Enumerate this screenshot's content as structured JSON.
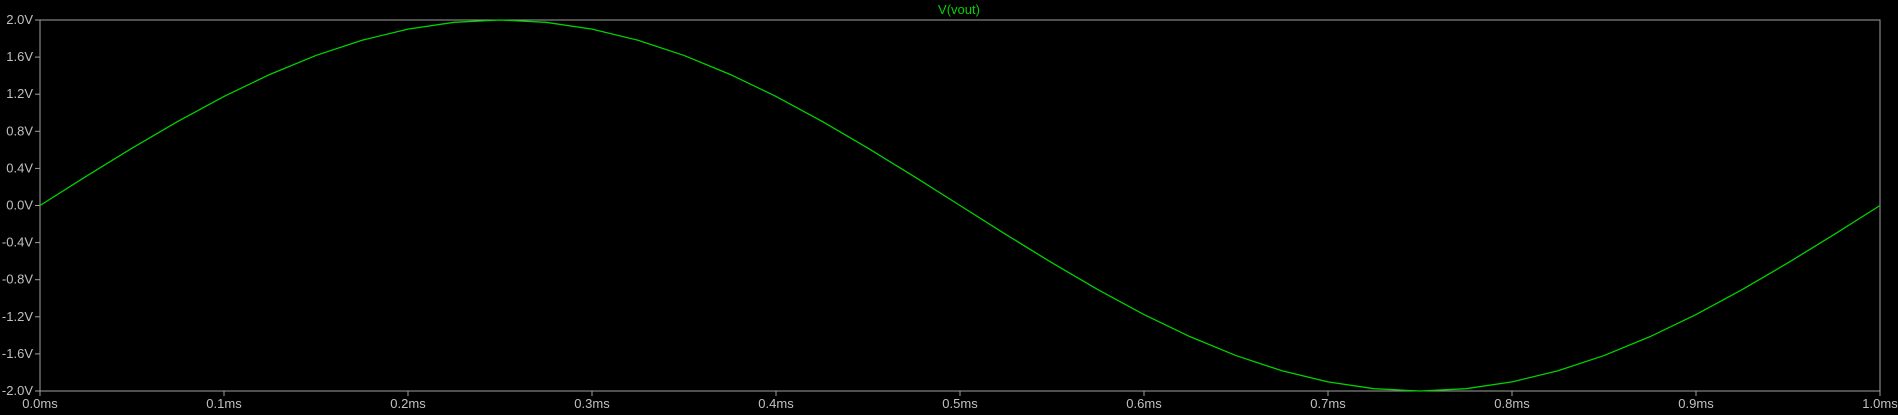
{
  "chart_data": {
    "type": "line",
    "title": "V(vout)",
    "xlabel": "",
    "ylabel": "",
    "xlim": [
      0.0,
      1.0
    ],
    "ylim": [
      -2.0,
      2.0
    ],
    "x_ticks": [
      0.0,
      0.1,
      0.2,
      0.3,
      0.4,
      0.5,
      0.6,
      0.7,
      0.8,
      0.9,
      1.0
    ],
    "x_tick_labels": [
      "0.0ms",
      "0.1ms",
      "0.2ms",
      "0.3ms",
      "0.4ms",
      "0.5ms",
      "0.6ms",
      "0.7ms",
      "0.8ms",
      "0.9ms",
      "1.0ms"
    ],
    "y_ticks": [
      2.0,
      1.6,
      1.2,
      0.8,
      0.4,
      0.0,
      -0.4,
      -0.8,
      -1.2,
      -1.6,
      -2.0
    ],
    "y_tick_labels": [
      "2.0V",
      "1.6V",
      "1.2V",
      "0.8V",
      "0.4V",
      "0.0V",
      "-0.4V",
      "-0.8V",
      "-1.2V",
      "-1.6V",
      "-2.0V"
    ],
    "grid": false,
    "series": [
      {
        "name": "V(vout)",
        "color": "#00d200",
        "x": [
          0.0,
          0.025,
          0.05,
          0.075,
          0.1,
          0.125,
          0.15,
          0.175,
          0.2,
          0.225,
          0.25,
          0.275,
          0.3,
          0.325,
          0.35,
          0.375,
          0.4,
          0.425,
          0.45,
          0.475,
          0.5,
          0.525,
          0.55,
          0.575,
          0.6,
          0.625,
          0.65,
          0.675,
          0.7,
          0.725,
          0.75,
          0.775,
          0.8,
          0.825,
          0.85,
          0.875,
          0.9,
          0.925,
          0.95,
          0.975,
          1.0
        ],
        "y": [
          0.0,
          0.313,
          0.618,
          0.908,
          1.176,
          1.414,
          1.618,
          1.782,
          1.902,
          1.975,
          2.0,
          1.975,
          1.902,
          1.782,
          1.618,
          1.414,
          1.176,
          0.908,
          0.618,
          0.313,
          0.0,
          -0.313,
          -0.618,
          -0.908,
          -1.176,
          -1.414,
          -1.618,
          -1.782,
          -1.902,
          -1.975,
          -2.0,
          -1.975,
          -1.902,
          -1.782,
          -1.618,
          -1.414,
          -1.176,
          -0.908,
          -0.618,
          -0.313,
          0.0
        ]
      }
    ],
    "colors": {
      "background": "#000000",
      "frame": "#a0a0a0",
      "tick_label": "#c0c0c0",
      "title": "#00d200"
    }
  }
}
